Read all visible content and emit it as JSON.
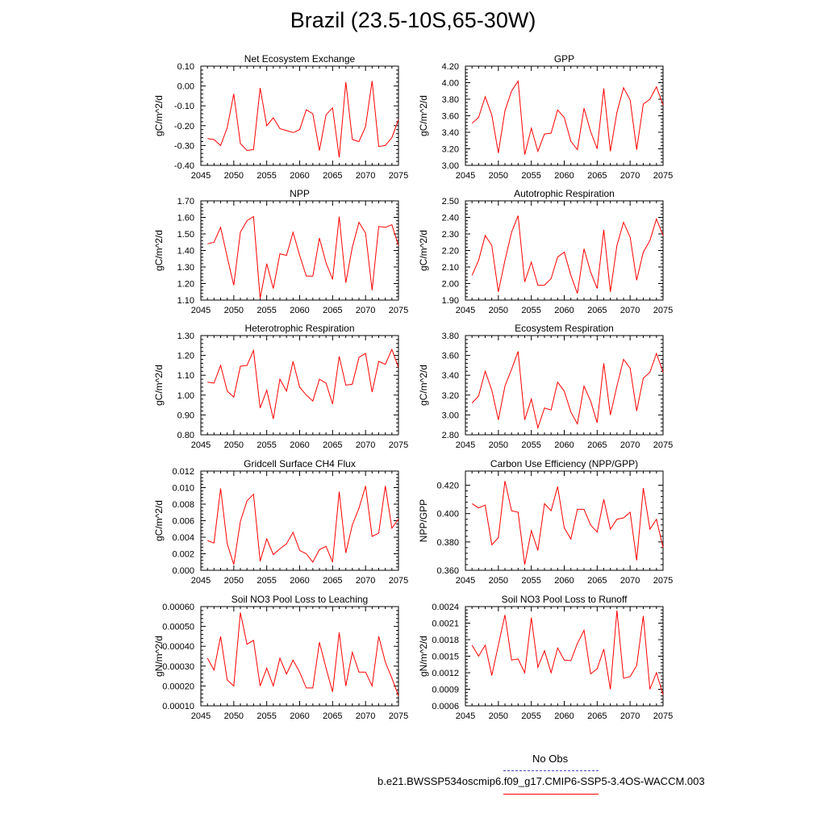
{
  "page_title": "Brazil (23.5-10S,65-30W)",
  "legend": {
    "obs_label": "No Obs",
    "obs_color": "#4444cc",
    "case_label": "b.e21.BWSSP534oscmip6.f09_g17.CMIP6-SSP5-3.4OS-WACCM.003",
    "case_color": "#ff0000"
  },
  "chart_data": [
    {
      "type": "line",
      "title": "Net Ecosystem Exchange",
      "ylabel": "gC/m^2/d",
      "xlim": [
        2045,
        2075
      ],
      "ylim": [
        -0.4,
        0.1
      ],
      "xticks": [
        "2045",
        "2050",
        "2055",
        "2060",
        "2065",
        "2070",
        "2075"
      ],
      "yticks": [
        "-0.40",
        "-0.30",
        "-0.20",
        "-0.10",
        "0.00",
        "0.10"
      ],
      "series": [
        {
          "color": "#ff0000",
          "x": [
            2046,
            2047,
            2048,
            2049,
            2050,
            2051,
            2052,
            2053,
            2054,
            2055,
            2056,
            2057,
            2058,
            2059,
            2060,
            2061,
            2062,
            2063,
            2064,
            2065,
            2066,
            2067,
            2068,
            2069,
            2070,
            2071,
            2072,
            2073,
            2074,
            2075
          ],
          "values": [
            -0.265,
            -0.27,
            -0.3,
            -0.21,
            -0.04,
            -0.29,
            -0.325,
            -0.32,
            -0.01,
            -0.2,
            -0.16,
            -0.215,
            -0.225,
            -0.235,
            -0.22,
            -0.12,
            -0.14,
            -0.325,
            -0.145,
            -0.11,
            -0.36,
            0.02,
            -0.27,
            -0.28,
            -0.205,
            0.025,
            -0.305,
            -0.3,
            -0.26,
            -0.17
          ]
        }
      ]
    },
    {
      "type": "line",
      "title": "GPP",
      "ylabel": "gC/m^2/d",
      "xlim": [
        2045,
        2075
      ],
      "ylim": [
        3.0,
        4.2
      ],
      "xticks": [
        "2045",
        "2050",
        "2055",
        "2060",
        "2065",
        "2070",
        "2075"
      ],
      "yticks": [
        "3.00",
        "3.20",
        "3.40",
        "3.60",
        "3.80",
        "4.00",
        "4.20"
      ],
      "series": [
        {
          "color": "#ff0000",
          "x": [
            2046,
            2047,
            2048,
            2049,
            2050,
            2051,
            2052,
            2053,
            2054,
            2055,
            2056,
            2057,
            2058,
            2059,
            2060,
            2061,
            2062,
            2063,
            2064,
            2065,
            2066,
            2067,
            2068,
            2069,
            2070,
            2071,
            2072,
            2073,
            2074,
            2075
          ],
          "values": [
            3.51,
            3.58,
            3.83,
            3.61,
            3.15,
            3.66,
            3.9,
            4.02,
            3.13,
            3.45,
            3.17,
            3.38,
            3.39,
            3.67,
            3.58,
            3.29,
            3.19,
            3.69,
            3.41,
            3.2,
            3.93,
            3.17,
            3.64,
            3.94,
            3.79,
            3.19,
            3.74,
            3.8,
            3.95,
            3.73
          ]
        }
      ]
    },
    {
      "type": "line",
      "title": "NPP",
      "ylabel": "gC/m^2/d",
      "xlim": [
        2045,
        2075
      ],
      "ylim": [
        1.1,
        1.7
      ],
      "xticks": [
        "2045",
        "2050",
        "2055",
        "2060",
        "2065",
        "2070",
        "2075"
      ],
      "yticks": [
        "1.10",
        "1.20",
        "1.30",
        "1.40",
        "1.50",
        "1.60",
        "1.70"
      ],
      "series": [
        {
          "color": "#ff0000",
          "x": [
            2046,
            2047,
            2048,
            2049,
            2050,
            2051,
            2052,
            2053,
            2054,
            2055,
            2056,
            2057,
            2058,
            2059,
            2060,
            2061,
            2062,
            2063,
            2064,
            2065,
            2066,
            2067,
            2068,
            2069,
            2070,
            2071,
            2072,
            2073,
            2074,
            2075
          ],
          "values": [
            1.44,
            1.45,
            1.54,
            1.36,
            1.19,
            1.51,
            1.58,
            1.605,
            1.11,
            1.32,
            1.17,
            1.38,
            1.37,
            1.51,
            1.37,
            1.245,
            1.245,
            1.475,
            1.325,
            1.225,
            1.605,
            1.205,
            1.42,
            1.57,
            1.505,
            1.16,
            1.545,
            1.54,
            1.555,
            1.43
          ]
        }
      ]
    },
    {
      "type": "line",
      "title": "Autotrophic Respiration",
      "ylabel": "gC/m^2/d",
      "xlim": [
        2045,
        2075
      ],
      "ylim": [
        1.9,
        2.5
      ],
      "xticks": [
        "2045",
        "2050",
        "2055",
        "2060",
        "2065",
        "2070",
        "2075"
      ],
      "yticks": [
        "1.90",
        "2.00",
        "2.10",
        "2.20",
        "2.30",
        "2.40",
        "2.50"
      ],
      "series": [
        {
          "color": "#ff0000",
          "x": [
            2046,
            2047,
            2048,
            2049,
            2050,
            2051,
            2052,
            2053,
            2054,
            2055,
            2056,
            2057,
            2058,
            2059,
            2060,
            2061,
            2062,
            2063,
            2064,
            2065,
            2066,
            2067,
            2068,
            2069,
            2070,
            2071,
            2072,
            2073,
            2074,
            2075
          ],
          "values": [
            2.05,
            2.14,
            2.29,
            2.23,
            1.95,
            2.14,
            2.31,
            2.41,
            2.01,
            2.13,
            1.99,
            1.99,
            2.03,
            2.16,
            2.19,
            2.05,
            1.94,
            2.21,
            2.07,
            1.97,
            2.325,
            1.95,
            2.23,
            2.37,
            2.28,
            2.02,
            2.19,
            2.26,
            2.39,
            2.29
          ]
        }
      ]
    },
    {
      "type": "line",
      "title": "Heterotrophic Respiration",
      "ylabel": "gC/m^2/d",
      "xlim": [
        2045,
        2075
      ],
      "ylim": [
        0.8,
        1.3
      ],
      "xticks": [
        "2045",
        "2050",
        "2055",
        "2060",
        "2065",
        "2070",
        "2075"
      ],
      "yticks": [
        "0.80",
        "0.90",
        "1.00",
        "1.10",
        "1.20",
        "1.30"
      ],
      "series": [
        {
          "color": "#ff0000",
          "x": [
            2046,
            2047,
            2048,
            2049,
            2050,
            2051,
            2052,
            2053,
            2054,
            2055,
            2056,
            2057,
            2058,
            2059,
            2060,
            2061,
            2062,
            2063,
            2064,
            2065,
            2066,
            2067,
            2068,
            2069,
            2070,
            2071,
            2072,
            2073,
            2074,
            2075
          ],
          "values": [
            1.065,
            1.06,
            1.15,
            1.02,
            0.99,
            1.145,
            1.15,
            1.225,
            0.935,
            1.025,
            0.88,
            1.08,
            1.02,
            1.17,
            1.04,
            1.0,
            0.97,
            1.08,
            1.06,
            0.955,
            1.195,
            1.05,
            1.055,
            1.19,
            1.21,
            1.015,
            1.17,
            1.155,
            1.23,
            1.14
          ]
        }
      ]
    },
    {
      "type": "line",
      "title": "Ecosystem Respiration",
      "ylabel": "gC/m^2/d",
      "xlim": [
        2045,
        2075
      ],
      "ylim": [
        2.8,
        3.8
      ],
      "xticks": [
        "2045",
        "2050",
        "2055",
        "2060",
        "2065",
        "2070",
        "2075"
      ],
      "yticks": [
        "2.80",
        "3.00",
        "3.20",
        "3.40",
        "3.60",
        "3.80"
      ],
      "series": [
        {
          "color": "#ff0000",
          "x": [
            2046,
            2047,
            2048,
            2049,
            2050,
            2051,
            2052,
            2053,
            2054,
            2055,
            2056,
            2057,
            2058,
            2059,
            2060,
            2061,
            2062,
            2063,
            2064,
            2065,
            2066,
            2067,
            2068,
            2069,
            2070,
            2071,
            2072,
            2073,
            2074,
            2075
          ],
          "values": [
            3.12,
            3.19,
            3.44,
            3.25,
            2.95,
            3.29,
            3.46,
            3.64,
            2.95,
            3.16,
            2.87,
            3.07,
            3.05,
            3.33,
            3.24,
            3.03,
            2.91,
            3.29,
            3.14,
            2.92,
            3.52,
            3.0,
            3.29,
            3.56,
            3.47,
            3.04,
            3.37,
            3.43,
            3.62,
            3.43
          ]
        }
      ]
    },
    {
      "type": "line",
      "title": "Gridcell Surface CH4 Flux",
      "ylabel": "gC/m^2/d",
      "xlim": [
        2045,
        2075
      ],
      "ylim": [
        0.0,
        0.012
      ],
      "xticks": [
        "2045",
        "2050",
        "2055",
        "2060",
        "2065",
        "2070",
        "2075"
      ],
      "yticks": [
        "0.000",
        "0.002",
        "0.004",
        "0.006",
        "0.008",
        "0.010",
        "0.012"
      ],
      "series": [
        {
          "color": "#ff0000",
          "x": [
            2046,
            2047,
            2048,
            2049,
            2050,
            2051,
            2052,
            2053,
            2054,
            2055,
            2056,
            2057,
            2058,
            2059,
            2060,
            2061,
            2062,
            2063,
            2064,
            2065,
            2066,
            2067,
            2068,
            2069,
            2070,
            2071,
            2072,
            2073,
            2074,
            2075
          ],
          "values": [
            0.0036,
            0.0033,
            0.0099,
            0.0032,
            0.0007,
            0.0059,
            0.0084,
            0.0092,
            0.0011,
            0.0038,
            0.0019,
            0.0026,
            0.0032,
            0.0046,
            0.0024,
            0.002,
            0.001,
            0.0025,
            0.0029,
            0.001,
            0.0095,
            0.0021,
            0.0055,
            0.0075,
            0.0102,
            0.0041,
            0.0045,
            0.0102,
            0.0051,
            0.0062
          ]
        }
      ]
    },
    {
      "type": "line",
      "title": "Carbon Use Efficiency (NPP/GPP)",
      "ylabel": "NPP/GPP",
      "xlim": [
        2045,
        2075
      ],
      "ylim": [
        0.36,
        0.43
      ],
      "xticks": [
        "2045",
        "2050",
        "2055",
        "2060",
        "2065",
        "2070",
        "2075"
      ],
      "yticks": [
        "0.360",
        "0.380",
        "0.400",
        "0.420"
      ],
      "series": [
        {
          "color": "#ff0000",
          "x": [
            2046,
            2047,
            2048,
            2049,
            2050,
            2051,
            2052,
            2053,
            2054,
            2055,
            2056,
            2057,
            2058,
            2059,
            2060,
            2061,
            2062,
            2063,
            2064,
            2065,
            2066,
            2067,
            2068,
            2069,
            2070,
            2071,
            2072,
            2073,
            2074,
            2075
          ],
          "values": [
            0.407,
            0.404,
            0.406,
            0.378,
            0.383,
            0.423,
            0.402,
            0.401,
            0.364,
            0.388,
            0.374,
            0.407,
            0.402,
            0.419,
            0.39,
            0.382,
            0.403,
            0.403,
            0.392,
            0.387,
            0.41,
            0.389,
            0.396,
            0.397,
            0.401,
            0.367,
            0.418,
            0.389,
            0.396,
            0.376
          ]
        }
      ]
    },
    {
      "type": "line",
      "title": "Soil NO3 Pool Loss to Leaching",
      "ylabel": "gN/m^2/d",
      "xlim": [
        2045,
        2075
      ],
      "ylim": [
        0.0001,
        0.0006
      ],
      "xticks": [
        "2045",
        "2050",
        "2055",
        "2060",
        "2065",
        "2070",
        "2075"
      ],
      "yticks": [
        "0.00010",
        "0.00020",
        "0.00030",
        "0.00040",
        "0.00050",
        "0.00060"
      ],
      "series": [
        {
          "color": "#ff0000",
          "x": [
            2046,
            2047,
            2048,
            2049,
            2050,
            2051,
            2052,
            2053,
            2054,
            2055,
            2056,
            2057,
            2058,
            2059,
            2060,
            2061,
            2062,
            2063,
            2064,
            2065,
            2066,
            2067,
            2068,
            2069,
            2070,
            2071,
            2072,
            2073,
            2074,
            2075
          ],
          "values": [
            0.00034,
            0.00028,
            0.00045,
            0.00023,
            0.0002,
            0.00057,
            0.00041,
            0.00043,
            0.0002,
            0.00029,
            0.0002,
            0.00034,
            0.00026,
            0.00033,
            0.00027,
            0.00019,
            0.00019,
            0.00042,
            0.00029,
            0.00017,
            0.00047,
            0.0002,
            0.00037,
            0.00027,
            0.00027,
            0.0002,
            0.00045,
            0.00032,
            0.00024,
            0.00015
          ]
        }
      ]
    },
    {
      "type": "line",
      "title": "Soil NO3 Pool Loss to Runoff",
      "ylabel": "gN/m^2/d",
      "xlim": [
        2045,
        2075
      ],
      "ylim": [
        0.0006,
        0.0024
      ],
      "xticks": [
        "2045",
        "2050",
        "2055",
        "2060",
        "2065",
        "2070",
        "2075"
      ],
      "yticks": [
        "0.0006",
        "0.0009",
        "0.0012",
        "0.0015",
        "0.0018",
        "0.0021",
        "0.0024"
      ],
      "series": [
        {
          "color": "#ff0000",
          "x": [
            2046,
            2047,
            2048,
            2049,
            2050,
            2051,
            2052,
            2053,
            2054,
            2055,
            2056,
            2057,
            2058,
            2059,
            2060,
            2061,
            2062,
            2063,
            2064,
            2065,
            2066,
            2067,
            2068,
            2069,
            2070,
            2071,
            2072,
            2073,
            2074,
            2075
          ],
          "values": [
            0.0017,
            0.0015,
            0.0017,
            0.00115,
            0.0017,
            0.00225,
            0.00143,
            0.00145,
            0.0012,
            0.0022,
            0.0013,
            0.0016,
            0.0012,
            0.00165,
            0.00143,
            0.00142,
            0.00173,
            0.00197,
            0.00118,
            0.00127,
            0.00163,
            0.0009,
            0.00233,
            0.0011,
            0.00113,
            0.00133,
            0.00223,
            0.0009,
            0.0012,
            0.0008
          ]
        }
      ]
    }
  ]
}
